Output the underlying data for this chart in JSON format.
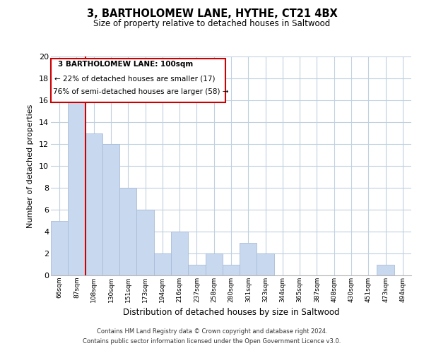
{
  "title": "3, BARTHOLOMEW LANE, HYTHE, CT21 4BX",
  "subtitle": "Size of property relative to detached houses in Saltwood",
  "xlabel": "Distribution of detached houses by size in Saltwood",
  "ylabel": "Number of detached properties",
  "bar_labels": [
    "66sqm",
    "87sqm",
    "108sqm",
    "130sqm",
    "151sqm",
    "173sqm",
    "194sqm",
    "216sqm",
    "237sqm",
    "258sqm",
    "280sqm",
    "301sqm",
    "323sqm",
    "344sqm",
    "365sqm",
    "387sqm",
    "408sqm",
    "430sqm",
    "451sqm",
    "473sqm",
    "494sqm"
  ],
  "bar_values": [
    5,
    16,
    13,
    12,
    8,
    6,
    2,
    4,
    1,
    2,
    1,
    3,
    2,
    0,
    0,
    0,
    0,
    0,
    0,
    1,
    0
  ],
  "bar_color": "#c8d8ee",
  "bar_edge_color": "#a8bcd8",
  "vline_color": "#cc0000",
  "vline_x": 1.5,
  "ylim": [
    0,
    20
  ],
  "yticks": [
    0,
    2,
    4,
    6,
    8,
    10,
    12,
    14,
    16,
    18,
    20
  ],
  "annotation_title": "3 BARTHOLOMEW LANE: 100sqm",
  "annotation_line1": "← 22% of detached houses are smaller (17)",
  "annotation_line2": "76% of semi-detached houses are larger (58) →",
  "footer_line1": "Contains HM Land Registry data © Crown copyright and database right 2024.",
  "footer_line2": "Contains public sector information licensed under the Open Government Licence v3.0.",
  "background_color": "#ffffff",
  "grid_color": "#c0d0e0"
}
